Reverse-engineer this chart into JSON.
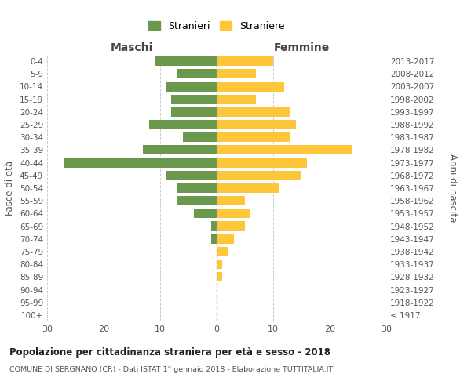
{
  "age_groups": [
    "100+",
    "95-99",
    "90-94",
    "85-89",
    "80-84",
    "75-79",
    "70-74",
    "65-69",
    "60-64",
    "55-59",
    "50-54",
    "45-49",
    "40-44",
    "35-39",
    "30-34",
    "25-29",
    "20-24",
    "15-19",
    "10-14",
    "5-9",
    "0-4"
  ],
  "birth_years": [
    "≤ 1917",
    "1918-1922",
    "1923-1927",
    "1928-1932",
    "1933-1937",
    "1938-1942",
    "1943-1947",
    "1948-1952",
    "1953-1957",
    "1958-1962",
    "1963-1967",
    "1968-1972",
    "1973-1977",
    "1978-1982",
    "1983-1987",
    "1988-1992",
    "1993-1997",
    "1998-2002",
    "2003-2007",
    "2008-2012",
    "2013-2017"
  ],
  "males": [
    0,
    0,
    0,
    0,
    0,
    0,
    1,
    1,
    4,
    7,
    7,
    9,
    27,
    13,
    6,
    12,
    8,
    8,
    9,
    7,
    11
  ],
  "females": [
    0,
    0,
    0,
    1,
    1,
    2,
    3,
    5,
    6,
    5,
    11,
    15,
    16,
    24,
    13,
    14,
    13,
    7,
    12,
    7,
    10
  ],
  "male_color": "#6a994e",
  "female_color": "#ffc639",
  "background_color": "#ffffff",
  "grid_color": "#cccccc",
  "title": "Popolazione per cittadinanza straniera per età e sesso - 2018",
  "subtitle": "COMUNE DI SERGNANO (CR) - Dati ISTAT 1° gennaio 2018 - Elaborazione TUTTITALIA.IT",
  "xlabel_left": "Maschi",
  "xlabel_right": "Femmine",
  "ylabel": "Fasce di età",
  "ylabel_right": "Anni di nascita",
  "legend_male": "Stranieri",
  "legend_female": "Straniere",
  "xlim": 30
}
